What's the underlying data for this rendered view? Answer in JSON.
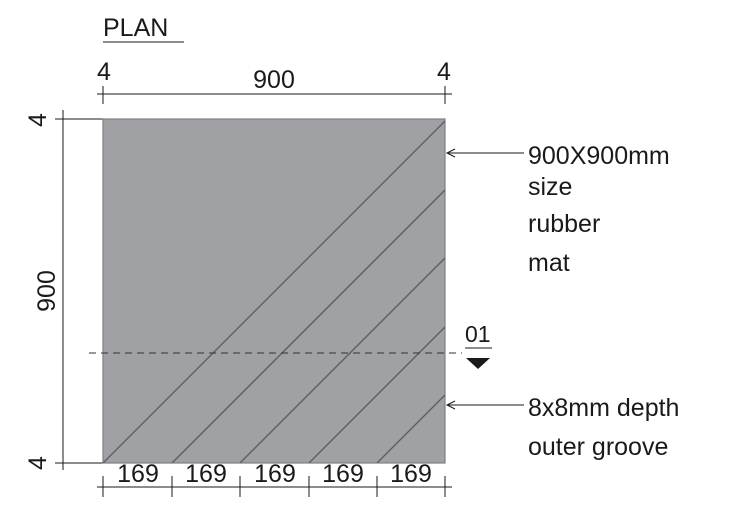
{
  "title": "PLAN",
  "colors": {
    "mat_fill": "#a0a1a5",
    "mat_edge": "#7f8084",
    "groove": "#5e5f63",
    "ink": "#1a1a1a"
  },
  "top_dimension": {
    "left_offset": "4",
    "overall": "900",
    "right_offset": "4"
  },
  "left_dimension": {
    "top_offset": "4",
    "overall": "900",
    "bottom_offset": "4"
  },
  "bottom_dimensions": [
    "169",
    "169",
    "169",
    "169",
    "169"
  ],
  "annotations": {
    "mat_label": [
      "900X900mm",
      "size",
      "rubber",
      "mat"
    ],
    "groove_label": [
      "8x8mm depth",
      "outer groove"
    ]
  },
  "section_marker": {
    "label": "01"
  }
}
